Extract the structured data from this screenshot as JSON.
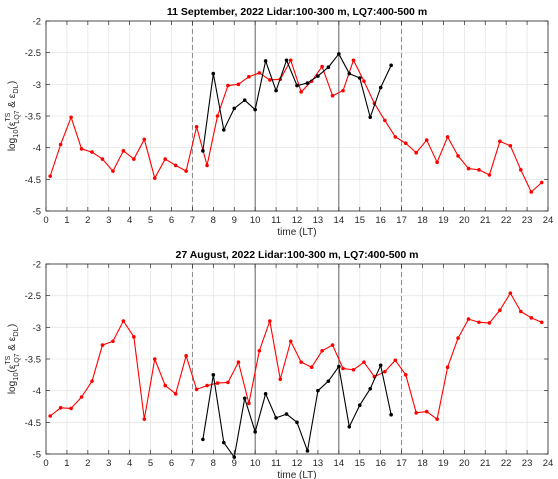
{
  "chart_data": [
    {
      "type": "line",
      "title": "11 September, 2022  Lidar:100-300 m, LQ7:400-500 m",
      "xlabel": "time (LT)",
      "ylabel_parts": {
        "prefix": "log",
        "base": "10",
        "paren_open": "(",
        "eps1": "ε",
        "sup1": "TS",
        "sub1": "LQ7",
        "amp": " & ",
        "eps2": "ε",
        "sub2": "DL",
        "paren_close": ")"
      },
      "xlim": [
        0,
        24
      ],
      "ylim": [
        -5,
        -2
      ],
      "xticks": [
        0,
        1,
        2,
        3,
        4,
        5,
        6,
        7,
        8,
        9,
        10,
        11,
        12,
        13,
        14,
        15,
        16,
        17,
        18,
        19,
        20,
        21,
        22,
        23,
        24
      ],
      "yticks": [
        -5,
        -4.5,
        -4,
        -3.5,
        -3,
        -2.5,
        -2
      ],
      "ytick_labels": [
        "-5",
        "-4.5",
        "-4",
        "-3.5",
        "-3",
        "-2.5",
        "-2"
      ],
      "grid": true,
      "vlines": [
        {
          "x": 7,
          "style": "dashed"
        },
        {
          "x": 10,
          "style": "solid"
        },
        {
          "x": 14,
          "style": "solid"
        },
        {
          "x": 17,
          "style": "dashed"
        }
      ],
      "series": [
        {
          "color": "#ff0000",
          "x": [
            0.2,
            0.7,
            1.2,
            1.7,
            2.2,
            2.7,
            3.2,
            3.7,
            4.2,
            4.7,
            5.2,
            5.7,
            6.2,
            6.7,
            7.2,
            7.7,
            8.2,
            8.7,
            9.2,
            9.7,
            10.2,
            10.7,
            11.2,
            11.7,
            12.2,
            12.7,
            13.2,
            13.7,
            14.2,
            14.7,
            15.2,
            15.7,
            16.2,
            16.7,
            17.2,
            17.7,
            18.2,
            18.7,
            19.2,
            19.7,
            20.2,
            20.7,
            21.2,
            21.7,
            22.2,
            22.7,
            23.2,
            23.7
          ],
          "y": [
            -4.45,
            -3.95,
            -3.52,
            -4.02,
            -4.07,
            -4.18,
            -4.37,
            -4.05,
            -4.18,
            -3.87,
            -4.48,
            -4.18,
            -4.28,
            -4.37,
            -3.67,
            -4.28,
            -3.5,
            -3.02,
            -3.0,
            -2.88,
            -2.82,
            -2.93,
            -2.92,
            -2.62,
            -3.12,
            -2.95,
            -2.72,
            -3.18,
            -3.1,
            -2.62,
            -2.95,
            -3.3,
            -3.57,
            -3.83,
            -3.93,
            -4.08,
            -3.88,
            -4.23,
            -3.83,
            -4.13,
            -4.33,
            -4.35,
            -4.43,
            -3.9,
            -3.97,
            -4.35,
            -4.7,
            -4.55
          ]
        },
        {
          "color": "#000000",
          "x": [
            7.5,
            8.0,
            8.5,
            9.0,
            9.5,
            10.0,
            10.5,
            11.0,
            11.5,
            12.0,
            12.5,
            13.0,
            13.5,
            14.0,
            14.5,
            15.0,
            15.5,
            16.0,
            16.5
          ],
          "y": [
            -4.05,
            -2.83,
            -3.72,
            -3.38,
            -3.25,
            -3.4,
            -2.63,
            -3.1,
            -2.62,
            -3.02,
            -2.98,
            -2.87,
            -2.73,
            -2.52,
            -2.83,
            -2.9,
            -3.52,
            -3.05,
            -2.7
          ]
        }
      ]
    },
    {
      "type": "line",
      "title": "27 August, 2022  Lidar:100-300 m, LQ7:400-500 m",
      "xlabel": "time (LT)",
      "ylabel_parts": {
        "prefix": "log",
        "base": "10",
        "paren_open": "(",
        "eps1": "ε",
        "sup1": "TS",
        "sub1": "LQ7",
        "amp": " & ",
        "eps2": "ε",
        "sub2": "DL",
        "paren_close": ")"
      },
      "xlim": [
        0,
        24
      ],
      "ylim": [
        -5,
        -2
      ],
      "xticks": [
        0,
        1,
        2,
        3,
        4,
        5,
        6,
        7,
        8,
        9,
        10,
        11,
        12,
        13,
        14,
        15,
        16,
        17,
        18,
        19,
        20,
        21,
        22,
        23,
        24
      ],
      "yticks": [
        -5,
        -4.5,
        -4,
        -3.5,
        -3,
        -2.5,
        -2
      ],
      "ytick_labels": [
        "-5",
        "-4.5",
        "-4",
        "-3.5",
        "-3",
        "-2.5",
        "-2"
      ],
      "grid": true,
      "vlines": [
        {
          "x": 7,
          "style": "dashed"
        },
        {
          "x": 10,
          "style": "solid"
        },
        {
          "x": 14,
          "style": "solid"
        },
        {
          "x": 17,
          "style": "dashed"
        }
      ],
      "series": [
        {
          "color": "#ff0000",
          "x": [
            0.2,
            0.7,
            1.2,
            1.7,
            2.2,
            2.7,
            3.2,
            3.7,
            4.2,
            4.7,
            5.2,
            5.7,
            6.2,
            6.7,
            7.2,
            7.7,
            8.2,
            8.7,
            9.2,
            9.7,
            10.2,
            10.7,
            11.2,
            11.7,
            12.2,
            12.7,
            13.2,
            13.7,
            14.2,
            14.7,
            15.2,
            15.7,
            16.2,
            16.7,
            17.2,
            17.7,
            18.2,
            18.7,
            19.2,
            19.7,
            20.2,
            20.7,
            21.2,
            21.7,
            22.2,
            22.7,
            23.2,
            23.7
          ],
          "y": [
            -4.4,
            -4.27,
            -4.28,
            -4.1,
            -3.85,
            -3.28,
            -3.22,
            -2.9,
            -3.15,
            -4.45,
            -3.5,
            -3.92,
            -4.05,
            -3.45,
            -3.98,
            -3.92,
            -3.88,
            -3.87,
            -3.55,
            -4.2,
            -3.37,
            -2.9,
            -3.82,
            -3.22,
            -3.55,
            -3.63,
            -3.37,
            -3.28,
            -3.65,
            -3.67,
            -3.55,
            -3.78,
            -3.7,
            -3.52,
            -3.75,
            -4.35,
            -4.33,
            -4.45,
            -3.63,
            -3.17,
            -2.87,
            -2.92,
            -2.93,
            -2.73,
            -2.46,
            -2.75,
            -2.85,
            -2.92
          ]
        },
        {
          "color": "#000000",
          "x": [
            7.5,
            8.0,
            8.5,
            9.0,
            9.5,
            10.0,
            10.5,
            11.0,
            11.5,
            12.0,
            12.5,
            13.0,
            13.5,
            14.0,
            14.5,
            15.0,
            15.5,
            16.0,
            16.5
          ],
          "y": [
            -4.77,
            -3.75,
            -4.82,
            -5.05,
            -4.12,
            -4.65,
            -4.05,
            -4.43,
            -4.37,
            -4.5,
            -4.95,
            -4.0,
            -3.85,
            -3.62,
            -4.57,
            -4.23,
            -3.97,
            -3.6,
            -4.38
          ]
        }
      ]
    }
  ]
}
